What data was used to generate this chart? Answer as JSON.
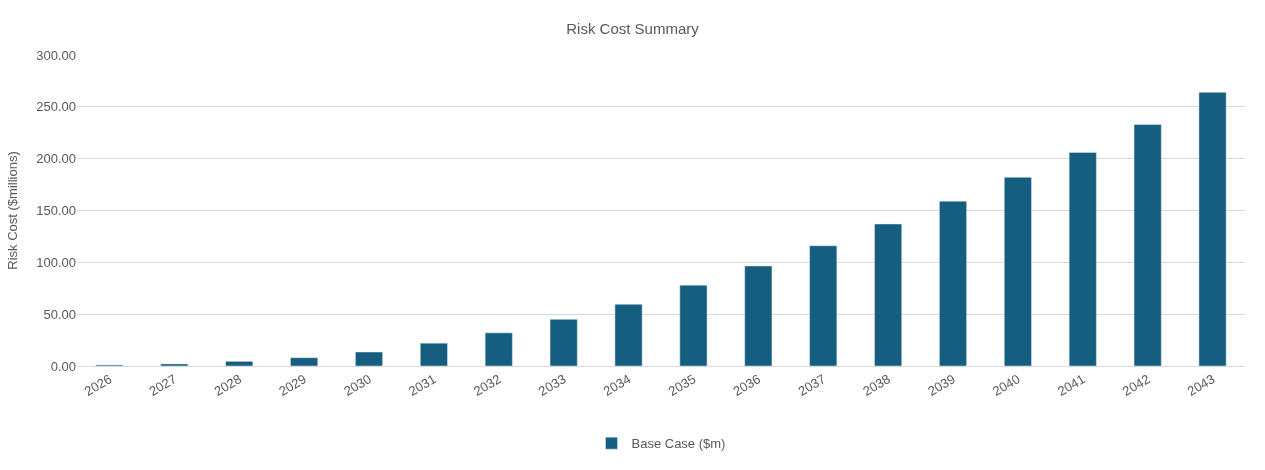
{
  "chart_data": {
    "type": "bar",
    "title": "Risk Cost Summary",
    "ylabel": "Risk Cost ($millions)",
    "categories": [
      "2026",
      "2027",
      "2028",
      "2029",
      "2030",
      "2031",
      "2032",
      "2033",
      "2034",
      "2035",
      "2036",
      "2037",
      "2038",
      "2039",
      "2040",
      "2041",
      "2042",
      "2043"
    ],
    "series": [
      {
        "name": "Base Case ($m)",
        "color": "#165e80",
        "values": [
          1,
          2,
          4.5,
          8,
          13.5,
          22,
          32,
          45,
          59.5,
          78,
          96.5,
          116,
          137,
          159,
          182,
          206,
          233,
          264
        ]
      }
    ],
    "ylim": [
      0,
      300
    ],
    "yticks": [
      {
        "value": 0,
        "label": "0.00"
      },
      {
        "value": 50,
        "label": "50.00"
      },
      {
        "value": 100,
        "label": "100.00"
      },
      {
        "value": 150,
        "label": "150.00"
      },
      {
        "value": 200,
        "label": "200.00"
      },
      {
        "value": 250,
        "label": "250.00"
      },
      {
        "value": 300,
        "label": "300.00"
      }
    ],
    "grid": "y",
    "legend": "bottom"
  }
}
